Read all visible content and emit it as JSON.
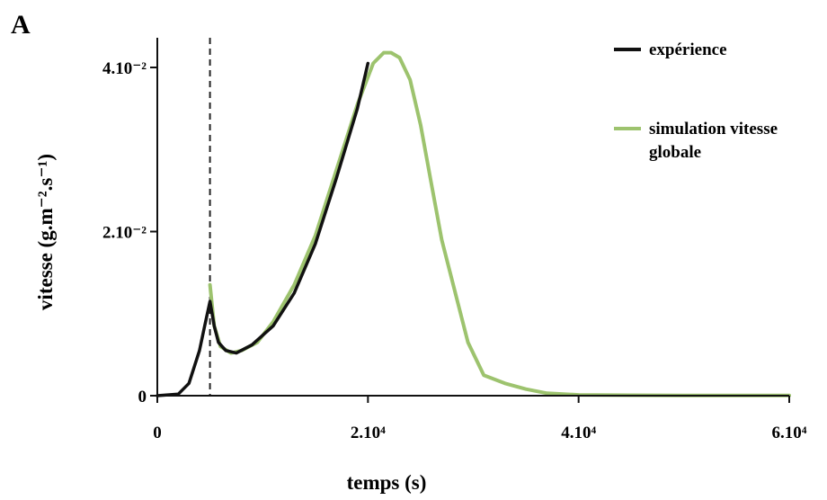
{
  "panel_label": "A",
  "chart_data": {
    "type": "line",
    "xlabel": "temps (s)",
    "ylabel": "vitesse (g.m⁻².s⁻¹)",
    "xlim": [
      0,
      60000
    ],
    "ylim": [
      0,
      0.042
    ],
    "x_ticks": [
      {
        "value": 0,
        "label": "0"
      },
      {
        "value": 20000,
        "label": "2.10⁴"
      },
      {
        "value": 40000,
        "label": "4.10⁴"
      },
      {
        "value": 60000,
        "label": "6.10⁴"
      }
    ],
    "y_ticks": [
      {
        "value": 0,
        "label": "0"
      },
      {
        "value": 0.02,
        "label": "2.10⁻²"
      },
      {
        "value": 0.04,
        "label": "4.10⁻²"
      }
    ],
    "vertical_marker": {
      "x": 5000,
      "style": "dashed"
    },
    "legend_position": "top-right",
    "series": [
      {
        "name": "expérience",
        "color": "#111111",
        "x": [
          0,
          2000,
          3000,
          4000,
          4500,
          5000,
          5400,
          5800,
          6500,
          7500,
          9000,
          11000,
          13000,
          15000,
          17000,
          19000,
          20000
        ],
        "y": [
          0,
          0.0002,
          0.0015,
          0.0055,
          0.0085,
          0.0115,
          0.0085,
          0.0065,
          0.0055,
          0.0052,
          0.0062,
          0.0085,
          0.0125,
          0.0185,
          0.0265,
          0.035,
          0.0405
        ]
      },
      {
        "name": "simulation vitesse globale",
        "color": "#9dc36e",
        "x": [
          5000,
          5400,
          6000,
          7000,
          8000,
          9500,
          11000,
          13000,
          15000,
          17000,
          19000,
          20500,
          21500,
          22200,
          23000,
          24000,
          25000,
          26000,
          27000,
          28500,
          29500,
          31000,
          33000,
          35000,
          37000,
          40000,
          45000,
          50000,
          55000,
          60000
        ],
        "y": [
          0.0135,
          0.0085,
          0.006,
          0.0052,
          0.0055,
          0.0065,
          0.009,
          0.0135,
          0.0195,
          0.0275,
          0.0355,
          0.0405,
          0.0418,
          0.0418,
          0.0412,
          0.0385,
          0.033,
          0.026,
          0.019,
          0.0115,
          0.0065,
          0.0025,
          0.0015,
          0.0008,
          0.0003,
          0.0001,
          5e-05,
          3e-05,
          2e-05,
          2e-05
        ]
      }
    ]
  }
}
